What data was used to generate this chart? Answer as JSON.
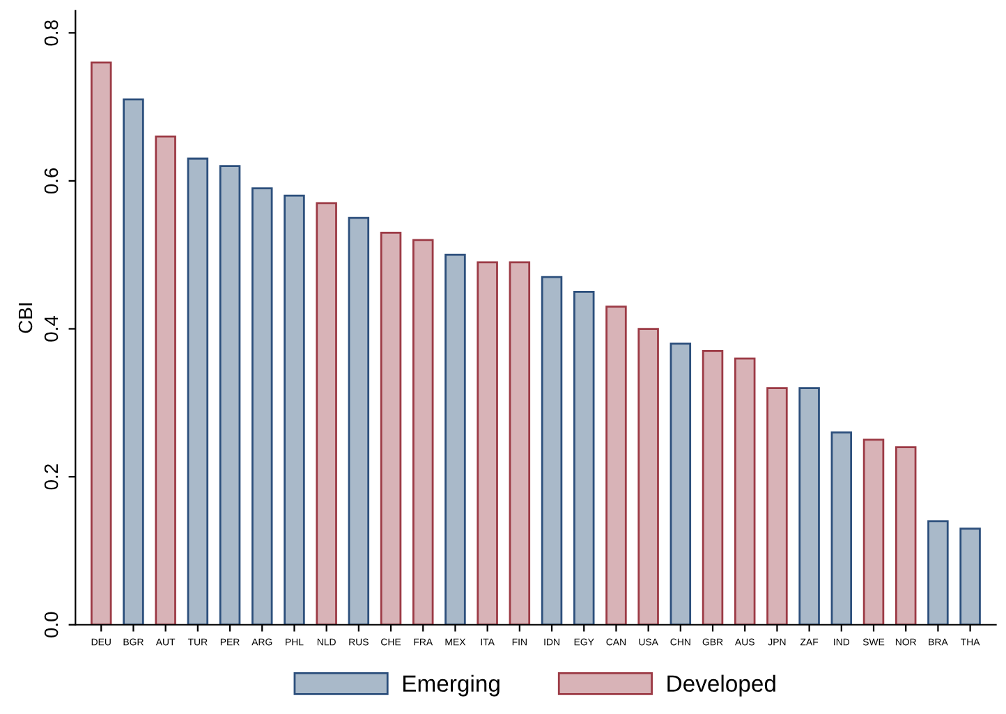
{
  "chart_data": {
    "type": "bar",
    "ylabel": "CBI",
    "categories": [
      "DEU",
      "BGR",
      "AUT",
      "TUR",
      "PER",
      "ARG",
      "PHL",
      "NLD",
      "RUS",
      "CHE",
      "FRA",
      "MEX",
      "ITA",
      "FIN",
      "IDN",
      "EGY",
      "CAN",
      "USA",
      "CHN",
      "GBR",
      "AUS",
      "JPN",
      "ZAF",
      "IND",
      "SWE",
      "NOR",
      "BRA",
      "THA"
    ],
    "series": [
      {
        "name": "Emerging",
        "color": "#a9b9c9",
        "values": [
          null,
          0.71,
          null,
          0.63,
          0.62,
          0.59,
          0.58,
          null,
          0.55,
          null,
          null,
          0.5,
          null,
          null,
          0.47,
          0.45,
          null,
          null,
          0.38,
          null,
          null,
          null,
          0.32,
          0.26,
          null,
          null,
          0.14,
          0.13
        ]
      },
      {
        "name": "Developed",
        "color": "#d8b3b7",
        "values": [
          0.76,
          null,
          0.66,
          null,
          null,
          null,
          null,
          0.57,
          null,
          0.53,
          0.52,
          null,
          0.49,
          0.49,
          null,
          null,
          0.43,
          0.4,
          null,
          0.37,
          0.36,
          0.32,
          null,
          null,
          0.25,
          0.24,
          null,
          null
        ]
      }
    ],
    "ylim": [
      0,
      0.83
    ],
    "yticks": [
      {
        "value": 0,
        "label": "0.0"
      },
      {
        "value": 0.2,
        "label": "0.2"
      },
      {
        "value": 0.4,
        "label": "0.4"
      },
      {
        "value": 0.6,
        "label": "0.6"
      },
      {
        "value": 0.8,
        "label": "0.8"
      }
    ],
    "legend": "bottom",
    "grid": false
  }
}
